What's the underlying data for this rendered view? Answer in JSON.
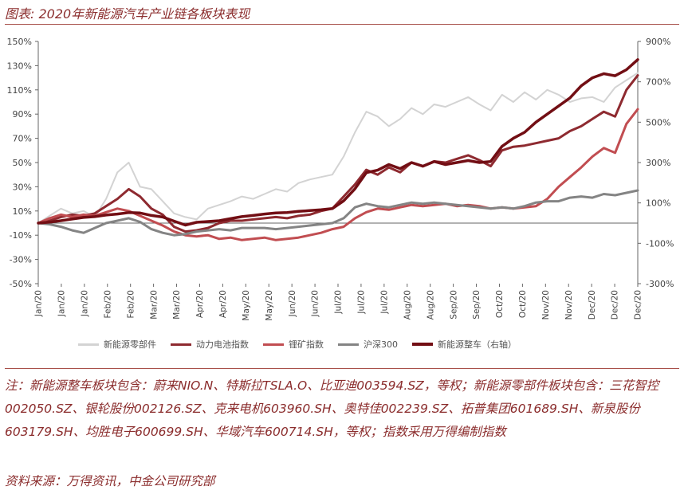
{
  "header": {
    "title": "图表: 2020年新能源汽车产业链各板块表现"
  },
  "chart_data": {
    "type": "line",
    "xlabel": "",
    "ylabel": "",
    "x_ticks": [
      "Jan/20",
      "Jan/20",
      "Jan/20",
      "Feb/20",
      "Feb/20",
      "Mar/20",
      "Mar/20",
      "Apr/20",
      "Apr/20",
      "May/20",
      "May/20",
      "Jun/20",
      "Jun/20",
      "Jul/20",
      "Jul/20",
      "Jul/20",
      "Aug/20",
      "Aug/20",
      "Sep/20",
      "Sep/20",
      "Oct/20",
      "Oct/20",
      "Nov/20",
      "Nov/20",
      "Dec/20",
      "Dec/20",
      "Dec/20"
    ],
    "left_axis": {
      "ylim": [
        -50,
        150
      ],
      "ticks": [
        "-50%",
        "-30%",
        "-10%",
        "10%",
        "30%",
        "50%",
        "70%",
        "90%",
        "110%",
        "130%",
        "150%"
      ]
    },
    "right_axis": {
      "ylim": [
        -300,
        900
      ],
      "ticks": [
        "-300%",
        "-100%",
        "100%",
        "300%",
        "500%",
        "700%",
        "900%"
      ]
    },
    "grid": false,
    "legend_position": "bottom",
    "series": [
      {
        "name": "新能源零部件",
        "axis": "left",
        "color": "#d3d3d3",
        "values": [
          0,
          6,
          12,
          8,
          10,
          5,
          20,
          42,
          50,
          30,
          28,
          18,
          8,
          5,
          3,
          12,
          15,
          18,
          22,
          20,
          24,
          28,
          26,
          33,
          36,
          38,
          40,
          55,
          75,
          92,
          88,
          80,
          86,
          95,
          90,
          98,
          96,
          100,
          104,
          98,
          93,
          106,
          100,
          108,
          102,
          110,
          106,
          100,
          103,
          104,
          100,
          112,
          118,
          124
        ]
      },
      {
        "name": "动力电池指数",
        "axis": "left",
        "color": "#8e2a30",
        "values": [
          0,
          2,
          5,
          7,
          6,
          8,
          14,
          20,
          28,
          22,
          12,
          7,
          -3,
          -7,
          -6,
          -4,
          0,
          2,
          2,
          3,
          4,
          5,
          4,
          6,
          7,
          10,
          12,
          22,
          32,
          44,
          40,
          46,
          42,
          50,
          47,
          51,
          50,
          53,
          56,
          52,
          47,
          60,
          63,
          64,
          66,
          68,
          70,
          76,
          80,
          86,
          92,
          88,
          110,
          122
        ]
      },
      {
        "name": "锂矿指数",
        "axis": "left",
        "color": "#c14d51",
        "values": [
          0,
          4,
          7,
          5,
          7,
          6,
          9,
          12,
          10,
          6,
          2,
          -2,
          -7,
          -10,
          -11,
          -10,
          -13,
          -12,
          -14,
          -13,
          -12,
          -14,
          -13,
          -12,
          -10,
          -8,
          -5,
          -3,
          4,
          9,
          12,
          11,
          13,
          15,
          14,
          15,
          16,
          14,
          15,
          14,
          12,
          13,
          12,
          13,
          14,
          20,
          30,
          38,
          46,
          55,
          62,
          58,
          82,
          94
        ]
      },
      {
        "name": "沪深300",
        "axis": "left",
        "color": "#848484",
        "values": [
          0,
          -1,
          -3,
          -6,
          -8,
          -4,
          0,
          2,
          4,
          1,
          -5,
          -8,
          -10,
          -9,
          -7,
          -6,
          -5,
          -6,
          -4,
          -4,
          -4,
          -5,
          -4,
          -3,
          -2,
          -1,
          0,
          4,
          13,
          16,
          14,
          13,
          15,
          17,
          16,
          17,
          16,
          15,
          14,
          13,
          12,
          13,
          12,
          14,
          17,
          18,
          18,
          21,
          22,
          21,
          24,
          23,
          25,
          27
        ]
      },
      {
        "name": "新能源整车（右轴）",
        "axis": "right",
        "color": "#720e14",
        "values": [
          0,
          5,
          12,
          20,
          28,
          32,
          40,
          45,
          52,
          50,
          38,
          30,
          10,
          -10,
          4,
          8,
          12,
          22,
          32,
          38,
          45,
          50,
          52,
          58,
          62,
          66,
          72,
          110,
          170,
          250,
          262,
          290,
          270,
          300,
          282,
          305,
          290,
          300,
          310,
          300,
          305,
          380,
          420,
          450,
          500,
          540,
          580,
          620,
          680,
          720,
          740,
          730,
          760,
          810
        ]
      }
    ]
  },
  "notes": {
    "note": "注：新能源整车板块包含：蔚来NIO.N、特斯拉TSLA.O、比亚迪003594.SZ，等权；新能源零部件板块包含：三花智控002050.SZ、银轮股份002126.SZ、克来电机603960.SH、奥特佳002239.SZ、拓普集团601689.SH、新泉股份603179.SH、均胜电子600699.SH、华域汽车600714.SH，等权；指数采用万得编制指数",
    "source": "资料来源：万得资讯，中金公司研究部"
  }
}
